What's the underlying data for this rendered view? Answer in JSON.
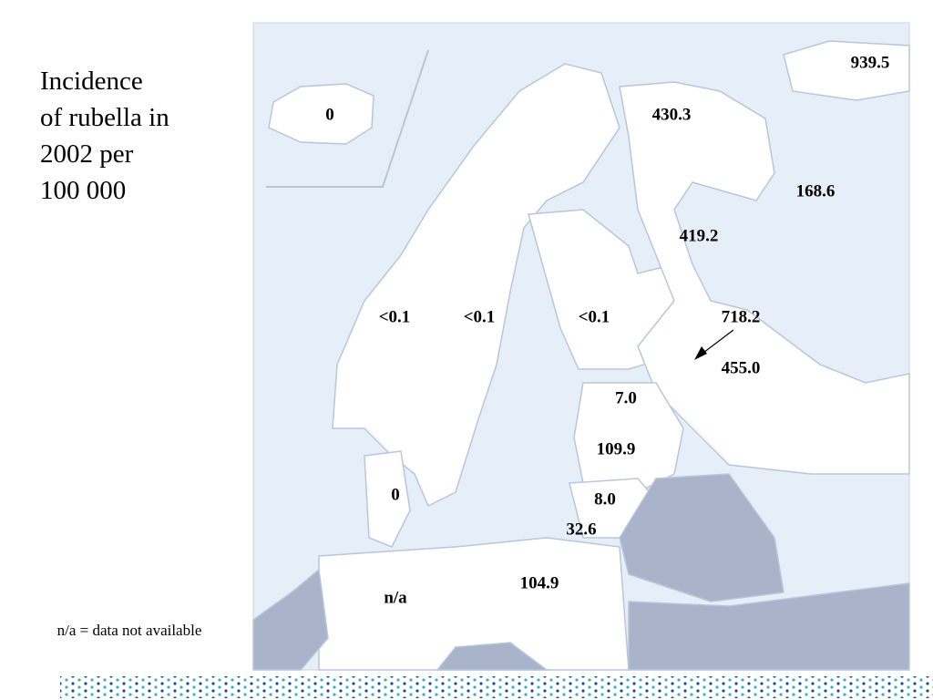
{
  "title": {
    "lines": [
      "Incidence",
      "of rubella in",
      "2002 per",
      "100 000"
    ]
  },
  "map": {
    "labels": [
      "939.5",
      "0",
      "430.3",
      "168.6",
      "419.2",
      "<0.1",
      "<0.1",
      "<0.1",
      "718.2",
      "455.0",
      "7.0",
      "109.9",
      "0",
      "8.0",
      "32.6",
      "104.9",
      "n/a"
    ]
  },
  "note": "n/a = data not available"
}
